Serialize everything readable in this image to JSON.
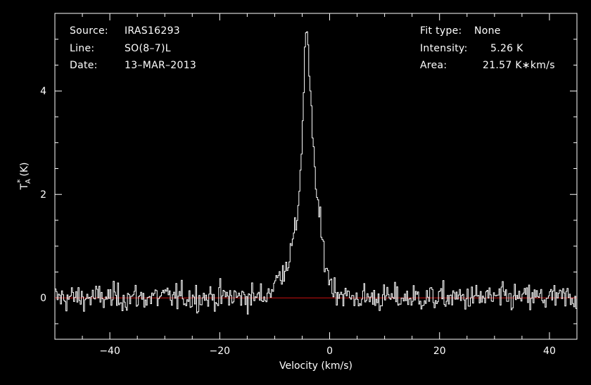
{
  "chart_data": {
    "type": "line",
    "xlabel": "Velocity (km/s)",
    "ylabel": "T",
    "ylabel_sub": "A",
    "ylabel_sup": "*",
    "ylabel_unit": "(K)",
    "xlim": [
      -50,
      45
    ],
    "ylim": [
      -0.8,
      5.5
    ],
    "xticks": [
      -40,
      -20,
      0,
      20,
      40
    ],
    "yticks": [
      0,
      2,
      4
    ],
    "baseline": 0,
    "colors": {
      "background": "#000000",
      "spectrum": "#ffffff",
      "baseline": "#cc1111",
      "axes": "#ffffff"
    },
    "series": [
      {
        "profile": [
          [
            -50,
            0
          ],
          [
            -12,
            0.02
          ],
          [
            -10.5,
            0.18
          ],
          [
            -9,
            0.45
          ],
          [
            -8,
            0.62
          ],
          [
            -7,
            0.9
          ],
          [
            -6,
            1.45
          ],
          [
            -5.5,
            2.1
          ],
          [
            -5,
            3.1
          ],
          [
            -4.6,
            4.4
          ],
          [
            -4.3,
            5.26
          ],
          [
            -4.0,
            4.9
          ],
          [
            -3.6,
            4.1
          ],
          [
            -3.2,
            3.3
          ],
          [
            -2.8,
            2.6
          ],
          [
            -2.2,
            1.9
          ],
          [
            -1.5,
            1.2
          ],
          [
            -0.7,
            0.65
          ],
          [
            0,
            0.35
          ],
          [
            1,
            0.15
          ],
          [
            2.5,
            0.06
          ],
          [
            4,
            0.0
          ],
          [
            45,
            0
          ]
        ],
        "noise_rms": 0.13
      }
    ]
  },
  "info": {
    "source_label": "Source:",
    "source_value": "IRAS16293",
    "line_label": "Line:",
    "line_value": "SO(8–7)L",
    "date_label": "Date:",
    "date_value": "13–MAR–2013",
    "fit_label": "Fit type:",
    "fit_value": "None",
    "intensity_label": "Intensity:",
    "intensity_value": "5.26 K",
    "area_label": "Area:",
    "area_value": "21.57 K∗km/s"
  }
}
